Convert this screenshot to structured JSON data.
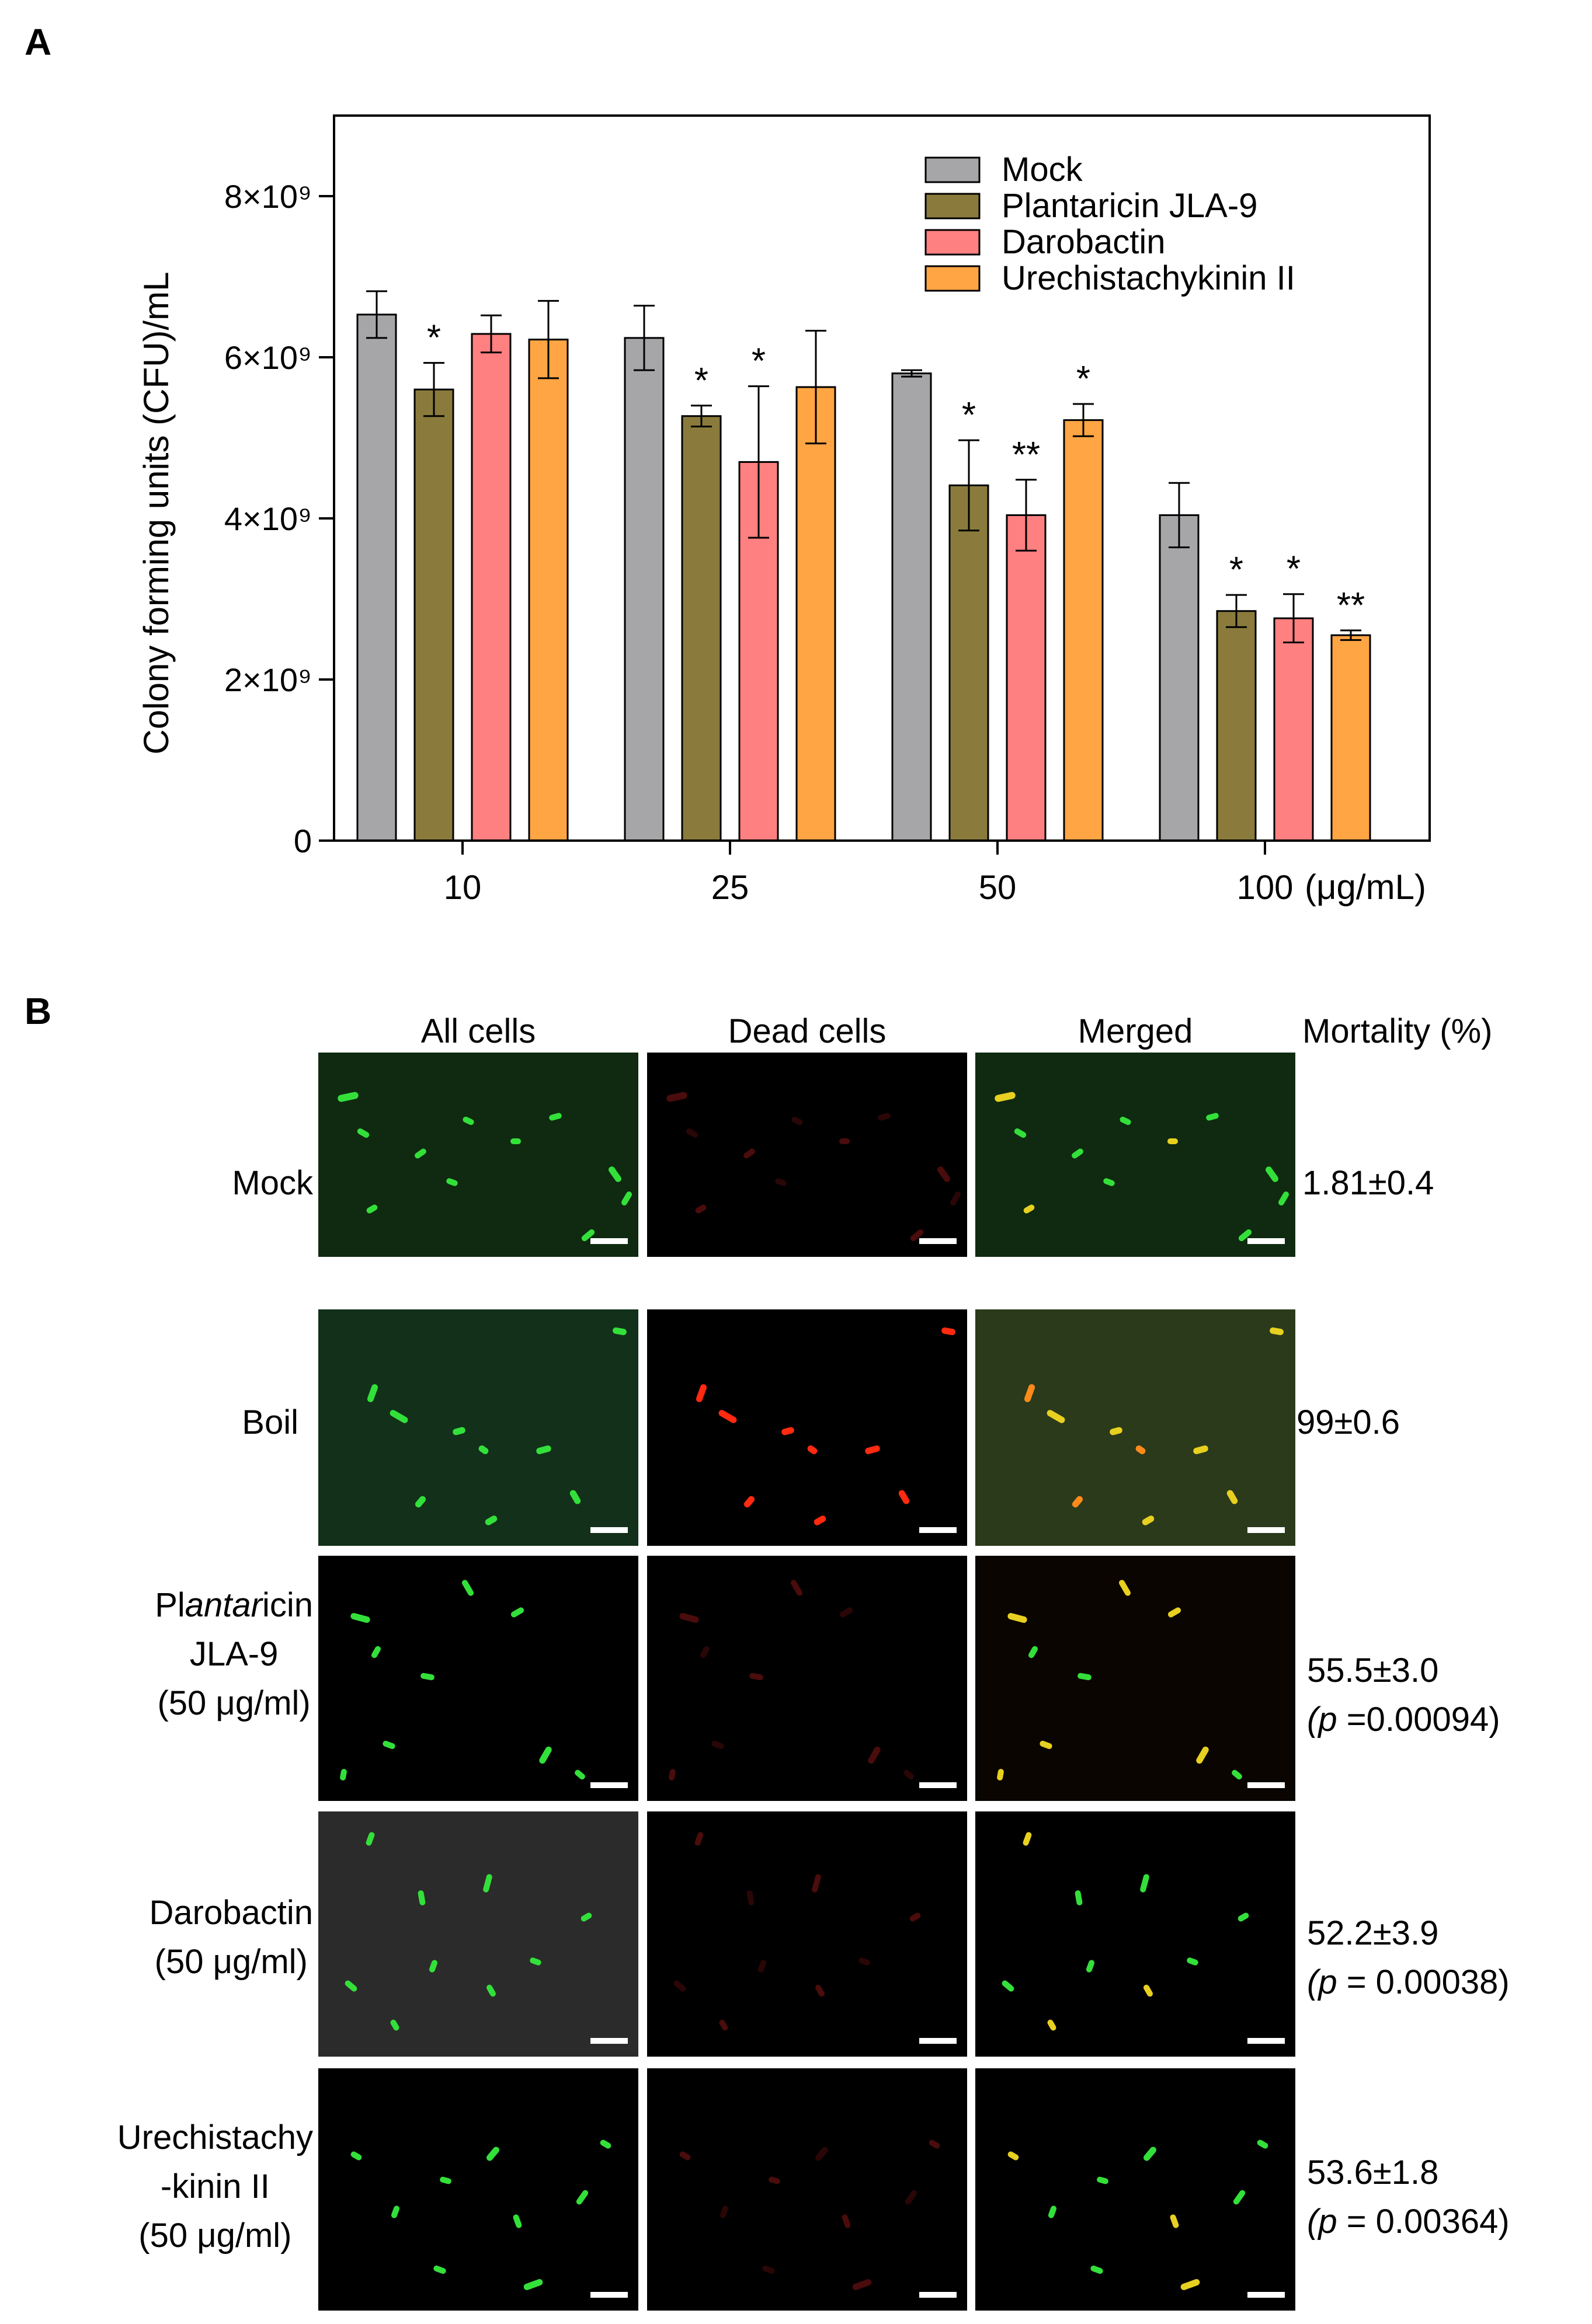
{
  "panel_a": {
    "letter": "A"
  },
  "panel_b": {
    "letter": "B"
  },
  "chart_data": {
    "type": "bar",
    "ylabel": "Colony forming units (CFU)/mL",
    "xlabel": "",
    "unit_label": "(μg/mL)",
    "categories": [
      "10",
      "25",
      "50",
      "100"
    ],
    "ylim": [
      0,
      9000000000
    ],
    "yticks": [
      0,
      2000000000,
      4000000000,
      6000000000,
      8000000000
    ],
    "ytick_labels": [
      "0",
      "2×10⁹",
      "4×10⁹",
      "6×10⁹",
      "8×10⁹"
    ],
    "legend_position": "top-right",
    "grid": false,
    "series": [
      {
        "name": "Mock",
        "color": "#a6a6a9",
        "values": [
          6530000000,
          6240000000,
          5800000000,
          4040000000
        ],
        "errors": [
          290000000,
          400000000,
          40000000,
          400000000
        ],
        "significance": [
          "",
          "",
          "",
          ""
        ]
      },
      {
        "name": "Plantaricin JLA-9",
        "color": "#8a7b3c",
        "values": [
          5600000000,
          5270000000,
          4410000000,
          2850000000
        ],
        "errors": [
          330000000,
          130000000,
          560000000,
          200000000
        ],
        "significance": [
          "*",
          "*",
          "*",
          "*"
        ]
      },
      {
        "name": "Darobactin",
        "color": "#ff8080",
        "values": [
          6290000000,
          4700000000,
          4040000000,
          2760000000
        ],
        "errors": [
          230000000,
          940000000,
          440000000,
          300000000
        ],
        "significance": [
          "",
          "*",
          "**",
          "*"
        ]
      },
      {
        "name": "Urechistachykinin II",
        "color": "#ffa544",
        "values": [
          6220000000,
          5630000000,
          5220000000,
          2550000000
        ],
        "errors": [
          480000000,
          700000000,
          200000000,
          60000000
        ],
        "significance": [
          "",
          "",
          "*",
          "**"
        ]
      }
    ]
  },
  "microscopy": {
    "columns": [
      "All cells",
      "Dead cells",
      "Merged"
    ],
    "mortality_header": "Mortality (%)",
    "rows": [
      {
        "label_lines": [
          "Mock",
          "",
          ""
        ],
        "mortality": [
          "1.81±0.4",
          ""
        ],
        "p_prefix": "",
        "p_value": ""
      },
      {
        "label_lines": [
          "Boil",
          "",
          ""
        ],
        "mortality": [
          "99±0.6",
          ""
        ],
        "p_prefix": "",
        "p_value": ""
      },
      {
        "label_lines": [
          "Plantaricin",
          "JLA-9",
          "(50 μg/ml)"
        ],
        "mortality": [
          "55.5±3.0",
          ""
        ],
        "p_prefix": "(p",
        "p_value": " =0.00094)"
      },
      {
        "label_lines": [
          "Darobactin",
          "(50 μg/ml)",
          ""
        ],
        "mortality": [
          "52.2±3.9",
          ""
        ],
        "p_prefix": "(p",
        "p_value": " = 0.00038)"
      },
      {
        "label_lines": [
          "Urechistachy",
          "-kinin II",
          "(50 μg/ml)"
        ],
        "mortality": [
          "53.6±1.8",
          ""
        ],
        "p_prefix": "(p",
        "p_value": " = 0.00364)"
      }
    ],
    "image_colors": {
      "all_bg": [
        "#0f2a10",
        "#12301a",
        "#000000",
        "#2b2b2b",
        "#000000"
      ],
      "green_cell": "#33e03a",
      "red_cell": "#ff2a10",
      "dim_red_cell": "#4a0c0c",
      "yellow_cell": "#e8d020",
      "orange_cell": "#ff8a1a"
    }
  }
}
